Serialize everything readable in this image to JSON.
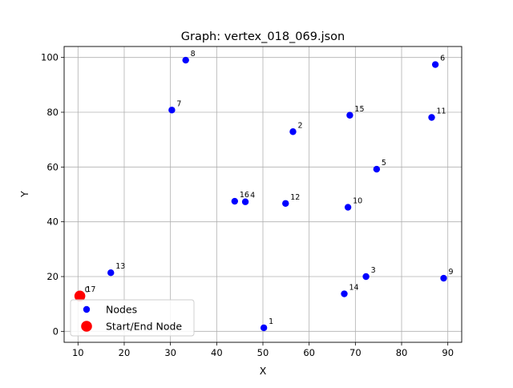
{
  "chart_data": {
    "type": "scatter",
    "title": "Graph: vertex_018_069.json",
    "xlabel": "X",
    "ylabel": "Y",
    "xlim": [
      7,
      93
    ],
    "ylim": [
      -4,
      104
    ],
    "xticks": [
      10,
      20,
      30,
      40,
      50,
      60,
      70,
      80,
      90
    ],
    "yticks": [
      0,
      20,
      40,
      60,
      80,
      100
    ],
    "grid": true,
    "legend_position": "lower-left",
    "series": [
      {
        "name": "Nodes",
        "color": "#0000ff",
        "points": [
          {
            "id": "1",
            "x": 50.2,
            "y": 1.3
          },
          {
            "id": "2",
            "x": 56.5,
            "y": 72.9
          },
          {
            "id": "3",
            "x": 72.3,
            "y": 20.0
          },
          {
            "id": "4",
            "x": 46.2,
            "y": 47.3
          },
          {
            "id": "5",
            "x": 74.6,
            "y": 59.2
          },
          {
            "id": "6",
            "x": 87.3,
            "y": 97.4
          },
          {
            "id": "7",
            "x": 30.3,
            "y": 80.8
          },
          {
            "id": "8",
            "x": 33.3,
            "y": 99.0
          },
          {
            "id": "9",
            "x": 89.1,
            "y": 19.4
          },
          {
            "id": "10",
            "x": 68.4,
            "y": 45.3
          },
          {
            "id": "11",
            "x": 86.5,
            "y": 78.1
          },
          {
            "id": "12",
            "x": 54.9,
            "y": 46.7
          },
          {
            "id": "13",
            "x": 17.1,
            "y": 21.4
          },
          {
            "id": "14",
            "x": 67.6,
            "y": 13.7
          },
          {
            "id": "15",
            "x": 68.8,
            "y": 78.9
          },
          {
            "id": "16",
            "x": 43.9,
            "y": 47.5
          },
          {
            "id": "17",
            "x": 10.7,
            "y": 13.0
          }
        ]
      },
      {
        "name": "Start/End Node",
        "color": "#ff0000",
        "points": [
          {
            "id": "0",
            "x": 10.4,
            "y": 12.9
          }
        ]
      }
    ]
  }
}
